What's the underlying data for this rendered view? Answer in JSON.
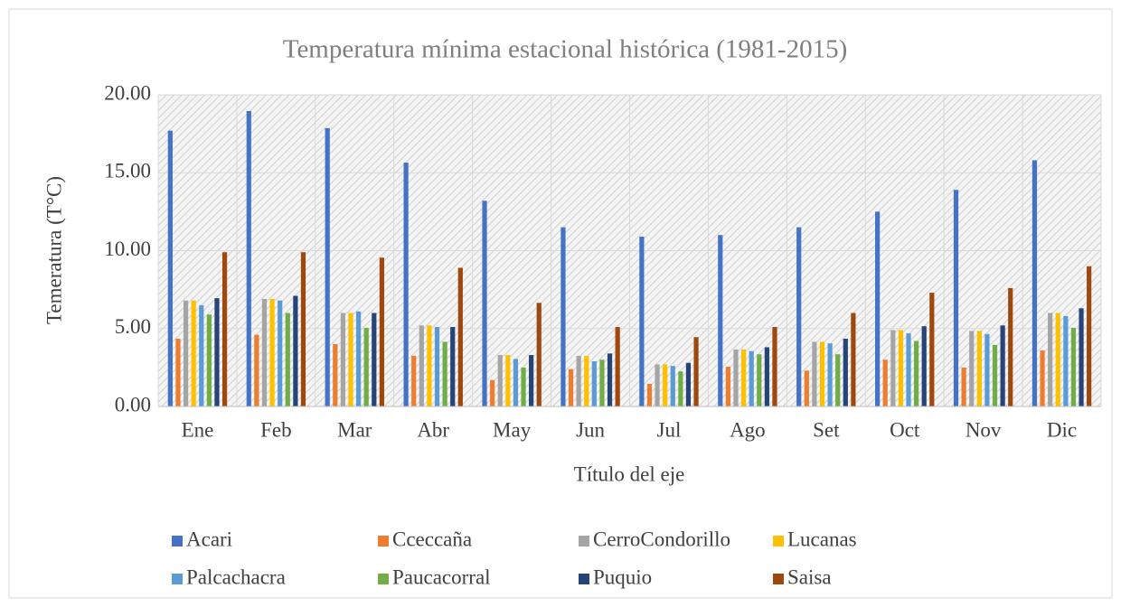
{
  "chart_data": {
    "type": "bar",
    "title": "Temperatura mínima estacional histórica  (1981-2015)",
    "x_label": "Título del eje",
    "y_label": "Temeratura  (T°C)",
    "categories": [
      "Ene",
      "Feb",
      "Mar",
      "Abr",
      "May",
      "Jun",
      "Jul",
      "Ago",
      "Set",
      "Oct",
      "Nov",
      "Dic"
    ],
    "series": [
      {
        "name": "Acari",
        "color": "#4472c4",
        "values": [
          17.7,
          18.96,
          17.86,
          15.65,
          13.2,
          11.5,
          10.9,
          11.0,
          11.5,
          12.5,
          13.9,
          15.8
        ]
      },
      {
        "name": "Cceccaña",
        "color": "#ed7d31",
        "values": [
          4.35,
          4.6,
          4.0,
          3.25,
          1.7,
          2.4,
          1.45,
          2.55,
          2.3,
          3.0,
          2.5,
          3.6
        ]
      },
      {
        "name": "CerroCondorillo",
        "color": "#a5a5a5",
        "values": [
          6.8,
          6.9,
          6.0,
          5.2,
          3.3,
          3.25,
          2.7,
          3.65,
          4.15,
          4.9,
          4.85,
          6.0
        ]
      },
      {
        "name": "Lucanas",
        "color": "#ffc000",
        "values": [
          6.8,
          6.9,
          6.0,
          5.2,
          3.3,
          3.25,
          2.7,
          3.65,
          4.15,
          4.9,
          4.85,
          6.0
        ]
      },
      {
        "name": "Palcachacra",
        "color": "#5b9bd5",
        "values": [
          6.5,
          6.8,
          6.1,
          5.1,
          3.05,
          2.9,
          2.6,
          3.55,
          4.05,
          4.7,
          4.65,
          5.8
        ]
      },
      {
        "name": "Paucacorral",
        "color": "#70ad47",
        "values": [
          5.9,
          6.0,
          5.05,
          4.15,
          2.5,
          3.0,
          2.25,
          3.35,
          3.35,
          4.2,
          3.95,
          5.05
        ]
      },
      {
        "name": "Puquio",
        "color": "#264478",
        "values": [
          6.95,
          7.1,
          6.0,
          5.1,
          3.3,
          3.4,
          2.8,
          3.8,
          4.35,
          5.15,
          5.2,
          6.3
        ]
      },
      {
        "name": "Saisa",
        "color": "#9e480e",
        "values": [
          9.9,
          9.9,
          9.55,
          8.9,
          6.65,
          5.1,
          4.45,
          5.1,
          6.0,
          7.3,
          7.6,
          9.0
        ]
      }
    ],
    "ylim": [
      0,
      20
    ],
    "yticks": [
      {
        "value": 0,
        "label": "0.00"
      },
      {
        "value": 5,
        "label": "5.00"
      },
      {
        "value": 10,
        "label": "10.00"
      },
      {
        "value": 15,
        "label": "15.00"
      },
      {
        "value": 20,
        "label": "20.00"
      }
    ],
    "grid": true,
    "legend": "bottom"
  }
}
